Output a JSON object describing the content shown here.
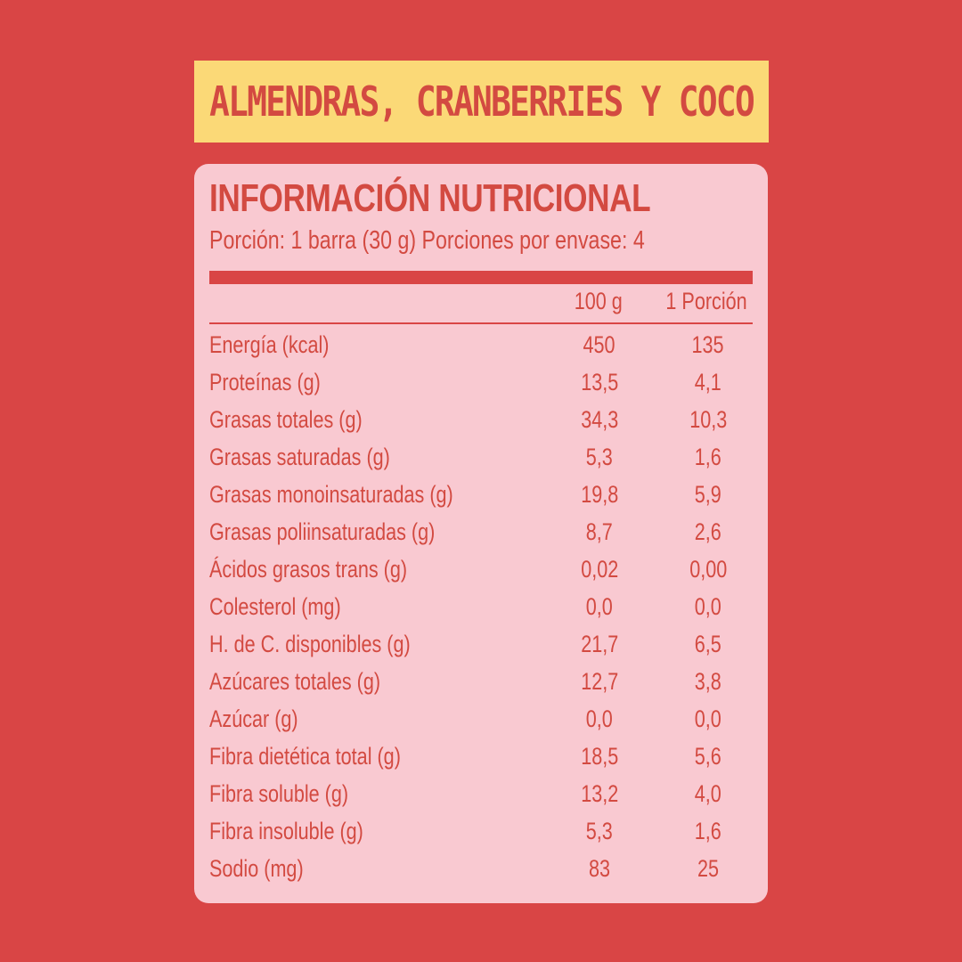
{
  "banner": {
    "title": "ALMENDRAS, CRANBERRIES Y COCO"
  },
  "label": {
    "heading": "INFORMACIÓN NUTRICIONAL",
    "serving": "Porción: 1 barra (30 g) Porciones por envase: 4",
    "columns": {
      "per_100g": "100 g",
      "per_portion": "1 Porción"
    },
    "rows": [
      {
        "name": "Energía (kcal)",
        "per_100g": "450",
        "per_portion": "135"
      },
      {
        "name": "Proteínas (g)",
        "per_100g": "13,5",
        "per_portion": "4,1"
      },
      {
        "name": "Grasas totales (g)",
        "per_100g": "34,3",
        "per_portion": "10,3"
      },
      {
        "name": "Grasas saturadas (g)",
        "per_100g": "5,3",
        "per_portion": "1,6"
      },
      {
        "name": "Grasas monoinsaturadas (g)",
        "per_100g": "19,8",
        "per_portion": "5,9"
      },
      {
        "name": "Grasas poliinsaturadas (g)",
        "per_100g": "8,7",
        "per_portion": "2,6"
      },
      {
        "name": "Ácidos grasos trans (g)",
        "per_100g": "0,02",
        "per_portion": "0,00"
      },
      {
        "name": "Colesterol (mg)",
        "per_100g": "0,0",
        "per_portion": "0,0"
      },
      {
        "name": "H. de C. disponibles (g)",
        "per_100g": "21,7",
        "per_portion": "6,5"
      },
      {
        "name": "Azúcares totales (g)",
        "per_100g": "12,7",
        "per_portion": "3,8"
      },
      {
        "name": "Azúcar (g)",
        "per_100g": "0,0",
        "per_portion": "0,0"
      },
      {
        "name": "Fibra dietética total (g)",
        "per_100g": "18,5",
        "per_portion": "5,6"
      },
      {
        "name": "Fibra soluble (g)",
        "per_100g": "13,2",
        "per_portion": "4,0"
      },
      {
        "name": "Fibra insoluble (g)",
        "per_100g": "5,3",
        "per_portion": "1,6"
      },
      {
        "name": "Sodio (mg)",
        "per_100g": "83",
        "per_portion": "25"
      }
    ]
  },
  "colors": {
    "background": "#d94545",
    "banner": "#fbd977",
    "card": "#f9c9d1",
    "text": "#d34a41"
  }
}
